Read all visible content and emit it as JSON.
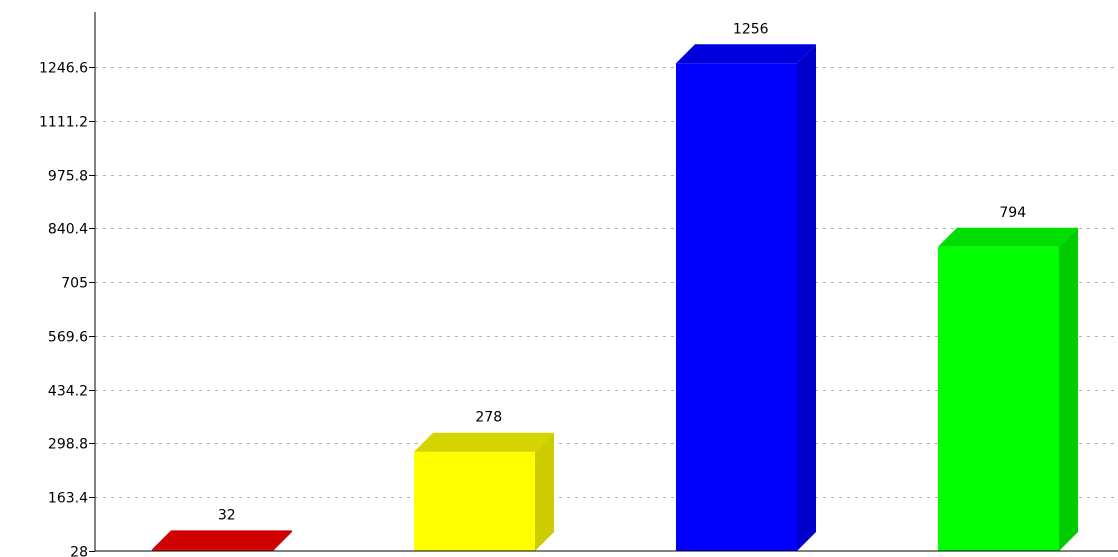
{
  "chart_data": {
    "type": "bar",
    "categories": [
      "",
      "",
      "",
      ""
    ],
    "values": [
      32,
      278,
      1256,
      794
    ],
    "data_labels": [
      "32",
      "278",
      "1256",
      "794"
    ],
    "colors": {
      "front": [
        "#dd0000",
        "#ffff00",
        "#0000ff",
        "#00ff00"
      ],
      "side": [
        "#b80000",
        "#cccc00",
        "#0000cc",
        "#00cc00"
      ],
      "top": [
        "#d00000",
        "#d4d400",
        "#0000dd",
        "#00dd00"
      ]
    },
    "y_ticks": [
      28,
      163.4,
      298.8,
      434.2,
      569.6,
      705,
      840.4,
      975.8,
      1111.2,
      1246.6
    ],
    "y_tick_labels": [
      "28",
      "163.4",
      "298.8",
      "434.2",
      "569.6",
      "705",
      "840.4",
      "975.8",
      "1111.2",
      "1246.6"
    ],
    "ylim": [
      28,
      1246.6
    ],
    "grid": true,
    "grid_style": "dashed",
    "legend": false,
    "title": "",
    "xlabel": "",
    "ylabel": ""
  }
}
